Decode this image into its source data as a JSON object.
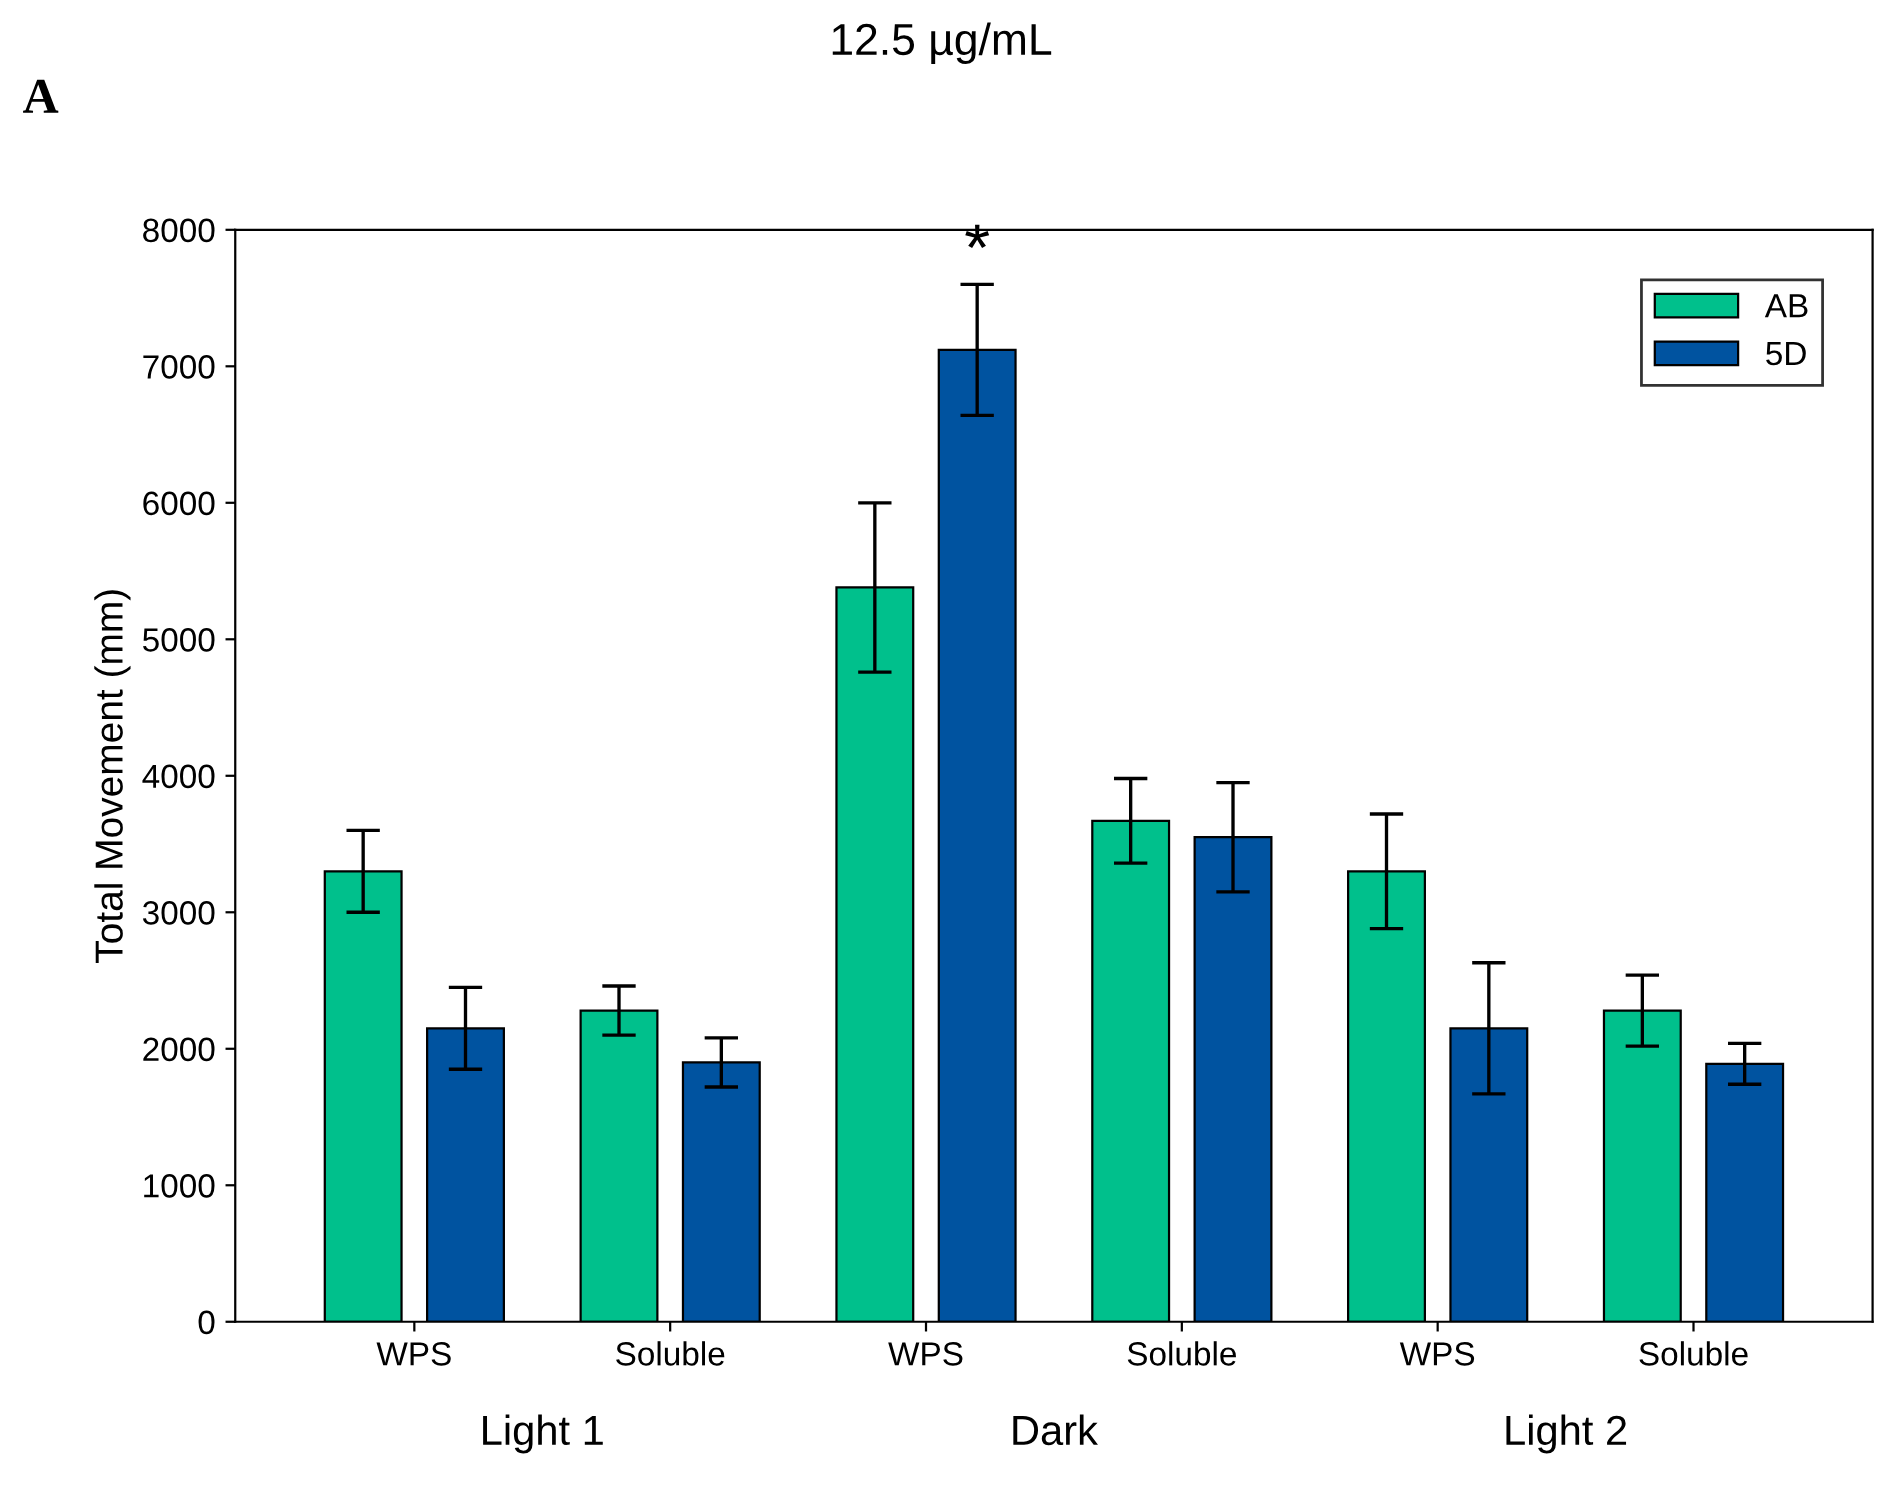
{
  "chart_data": {
    "type": "bar",
    "title": "12.5 µg/mL",
    "ylabel": "Total Movement (mm)",
    "categories": [
      "WPS",
      "Soluble",
      "WPS",
      "Soluble",
      "WPS",
      "Soluble"
    ],
    "series": [
      {
        "name": "AB",
        "color": "#00c08c",
        "values": [
          3300,
          2280,
          5380,
          3670,
          3300,
          2280
        ],
        "errors": [
          300,
          180,
          620,
          310,
          420,
          260
        ]
      },
      {
        "name": "5D",
        "color": "#0053a0",
        "values": [
          2150,
          1900,
          7120,
          3550,
          2150,
          1890
        ],
        "errors": [
          300,
          180,
          480,
          400,
          480,
          150
        ]
      }
    ],
    "ylim": [
      0,
      8000
    ],
    "yticks": [
      0,
      1000,
      2000,
      3000,
      4000,
      5000,
      6000,
      7000,
      8000
    ],
    "annotations": [
      "A",
      "*",
      "Light 1",
      "Dark",
      "Light 2"
    ],
    "grid": false,
    "legend": "top right"
  }
}
